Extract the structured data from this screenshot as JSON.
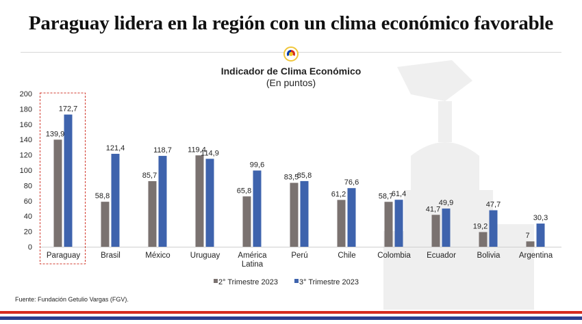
{
  "headline": "Paraguay lidera en la región con un clima económico favorable",
  "colors": {
    "series_q2": "#7a7270",
    "series_q3": "#3e63ad",
    "highlight_box": "#d23a2e",
    "stripe_red": "#d52b1e",
    "stripe_blue": "#2b3f8f"
  },
  "icons": [
    "paraguay-seal-icon",
    "building-watermark-icon"
  ],
  "source": "Fuente: Fundación Getulio Vargas (FGV).",
  "chart_data": {
    "type": "bar",
    "title": "Indicador de Clima Económico",
    "subtitle": "(En puntos)",
    "xlabel": "",
    "ylabel": "",
    "ylim": [
      0,
      200
    ],
    "yticks": [
      0,
      20,
      40,
      60,
      80,
      100,
      120,
      140,
      160,
      180,
      200
    ],
    "grid": false,
    "legend_position": "bottom",
    "categories": [
      "Paraguay",
      "Brasil",
      "México",
      "Uruguay",
      "América Latina",
      "Perú",
      "Chile",
      "Colombia",
      "Ecuador",
      "Bolivia",
      "Argentina"
    ],
    "series": [
      {
        "name": "2° Trimestre 2023",
        "values": [
          139.9,
          58.8,
          85.7,
          119.4,
          65.8,
          83.5,
          61.2,
          58.7,
          41.7,
          19.2,
          7
        ],
        "labels": [
          "139,9",
          "58,8",
          "85,7",
          "119,4",
          "65,8",
          "83,5",
          "61,2",
          "58,7",
          "41,7",
          "19,2",
          "7"
        ]
      },
      {
        "name": "3° Trimestre 2023",
        "values": [
          172.7,
          121.4,
          118.7,
          114.9,
          99.6,
          85.8,
          76.6,
          61.4,
          49.9,
          47.7,
          30.3
        ],
        "labels": [
          "172,7",
          "121,4",
          "118,7",
          "114,9",
          "99,6",
          "85,8",
          "76,6",
          "61,4",
          "49,9",
          "47,7",
          "30,3"
        ]
      }
    ],
    "highlighted_category": "Paraguay"
  }
}
